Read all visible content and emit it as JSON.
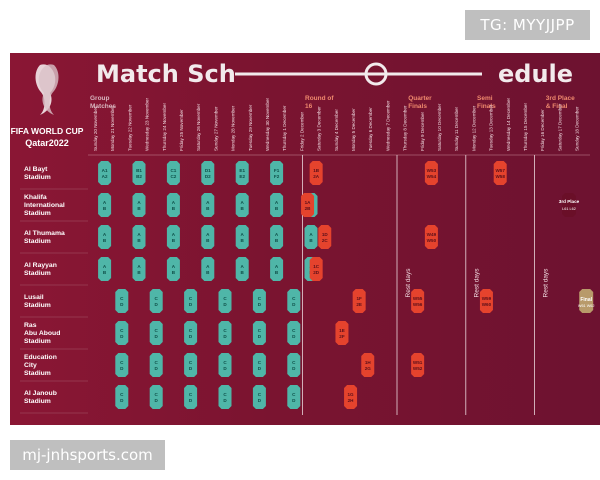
{
  "watermarks": {
    "top_right": "TG: MYYJJPP",
    "bottom_left": "mj-jnhsports.com"
  },
  "poster": {
    "title": "Match Schedule",
    "title_left": "Match Sch",
    "title_right": "edule",
    "brand_line1": "FIFA WORLD CUP",
    "brand_line2": "Qatar2022",
    "stages": [
      "Group Matches",
      "Round of 16",
      "Quarter Finals",
      "Semi Finals",
      "3rd Place & Final"
    ],
    "dates": [
      "Sunday 20 November",
      "Monday 21 November",
      "Tuesday 22 November",
      "Wednesday 23 November",
      "Thursday 24 November",
      "Friday 25 November",
      "Saturday 26 November",
      "Sunday 27 November",
      "Monday 28 November",
      "Tuesday 29 November",
      "Wednesday 30 November",
      "Thursday 1 December",
      "Friday 2 December",
      "Saturday 3 December",
      "Sunday 4 December",
      "Monday 5 December",
      "Tuesday 6 December",
      "Wednesday 7 December",
      "Thursday 8 December",
      "Friday 9 December",
      "Saturday 10 December",
      "Sunday 11 December",
      "Monday 12 December",
      "Tuesday 13 December",
      "Wednesday 14 December",
      "Thursday 15 December",
      "Friday 16 December",
      "Saturday 17 December",
      "Sunday 18 December"
    ],
    "stadiums": [
      "Al Bayt Stadium",
      "Khalifa International Stadium",
      "Al Thumama Stadium",
      "Al Rayyan Stadium",
      "Lusail Stadium",
      "Ras Abu Aboud Stadium",
      "Education City Stadium",
      "Al Janoub Stadium"
    ],
    "rest_days_label": "Rest days",
    "group_matches": [
      [
        [
          "A1",
          "A2"
        ],
        [
          "B1",
          "B2"
        ],
        [
          "C1",
          "C2"
        ],
        [
          "D1",
          "D2"
        ],
        [
          "E1",
          "E2"
        ],
        [
          "F1",
          "F2"
        ]
      ],
      [
        [
          "A",
          "B"
        ],
        [
          "A",
          "B"
        ],
        [
          "A",
          "B"
        ],
        [
          "A",
          "B"
        ],
        [
          "A",
          "B"
        ],
        [
          "A",
          "B"
        ],
        [
          "A",
          "B"
        ]
      ],
      [
        [
          "A",
          "B"
        ],
        [
          "A",
          "B"
        ],
        [
          "A",
          "B"
        ],
        [
          "A",
          "B"
        ],
        [
          "A",
          "B"
        ],
        [
          "A",
          "B"
        ],
        [
          "A",
          "B"
        ]
      ],
      [
        [
          "A",
          "B"
        ],
        [
          "A",
          "B"
        ],
        [
          "A",
          "B"
        ],
        [
          "A",
          "B"
        ],
        [
          "A",
          "B"
        ],
        [
          "A",
          "B"
        ],
        [
          "A",
          "B"
        ]
      ],
      [
        [
          "C",
          "D"
        ],
        [
          "C",
          "D"
        ],
        [
          "C",
          "D"
        ],
        [
          "C",
          "D"
        ],
        [
          "C",
          "D"
        ],
        [
          "C",
          "D"
        ]
      ],
      [
        [
          "C",
          "D"
        ],
        [
          "C",
          "D"
        ],
        [
          "C",
          "D"
        ],
        [
          "C",
          "D"
        ],
        [
          "C",
          "D"
        ],
        [
          "C",
          "D"
        ]
      ],
      [
        [
          "C",
          "D"
        ],
        [
          "C",
          "D"
        ],
        [
          "C",
          "D"
        ],
        [
          "C",
          "D"
        ],
        [
          "C",
          "D"
        ],
        [
          "C",
          "D"
        ]
      ],
      [
        [
          "C",
          "D"
        ],
        [
          "C",
          "D"
        ],
        [
          "C",
          "D"
        ],
        [
          "C",
          "D"
        ],
        [
          "C",
          "D"
        ],
        [
          "C",
          "D"
        ]
      ]
    ],
    "r16_matches": [
      [
        "1B",
        "2A"
      ],
      [
        "1A",
        "2B"
      ],
      [
        "1D",
        "2C"
      ],
      [
        "1C",
        "2D"
      ],
      [
        "1F",
        "2E"
      ],
      [
        "1E",
        "2F"
      ],
      [
        "1H",
        "2G"
      ],
      [
        "1G",
        "2H"
      ]
    ],
    "qf_matches": [
      [
        "W53",
        "W54"
      ],
      [
        "W49",
        "W50"
      ],
      [
        "W55",
        "W56"
      ],
      [
        "W51",
        "W52"
      ]
    ],
    "sf_matches": [
      [
        "W57",
        "W58"
      ],
      [
        "W59",
        "W60"
      ]
    ],
    "third_place": {
      "label": "3rd Place",
      "sub": "L61 L62"
    },
    "final": {
      "label": "Final",
      "sub": "W61 W62"
    },
    "colors": {
      "background": "#7a1430",
      "group": "#4fb6a8",
      "knockout": "#e5432d",
      "final": "#b89a6a",
      "third": "#7a1430"
    }
  }
}
